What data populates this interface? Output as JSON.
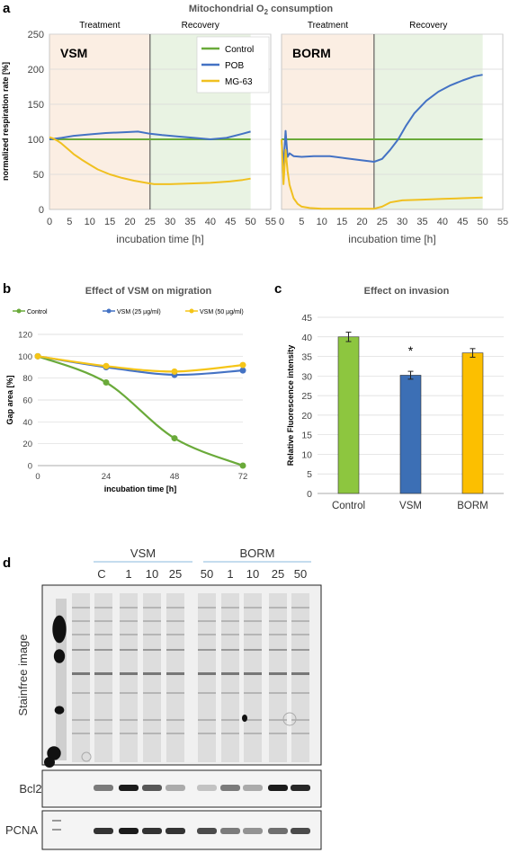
{
  "panels": {
    "a": "a",
    "b": "b",
    "c": "c",
    "d": "d"
  },
  "colors": {
    "control": "#6aaa3a",
    "pob": "#4472c4",
    "mg63": "#f0c020",
    "vsm25": "#4472c4",
    "vsm50": "#f5c518",
    "bar_control": "#8dc63f",
    "bar_vsm": "#3c6fb5",
    "bar_borm": "#fcbf00",
    "treatment_bg": "#fbeee3",
    "recovery_bg": "#e9f3e3"
  },
  "chart_data": [
    {
      "id": "a",
      "type": "line",
      "title": "Mitochondrial O",
      "title_sub": "2",
      "title_rest": " consumption",
      "ylabel": "normalized respiration rate [%]",
      "xlabel": "incubation time [h]",
      "ylim": [
        0,
        250
      ],
      "yticks": [
        "0",
        "50",
        "100",
        "150",
        "200",
        "250"
      ],
      "xlim": [
        0,
        55
      ],
      "xticks": [
        "0",
        "5",
        "10",
        "15",
        "20",
        "25",
        "30",
        "35",
        "40",
        "45",
        "50",
        "55"
      ],
      "phases": [
        "Treatment",
        "Recovery"
      ],
      "legend": [
        "Control",
        "POB",
        "MG-63"
      ],
      "panels": [
        {
          "name": "VSM",
          "switch_x": 25,
          "series": [
            {
              "key": "control",
              "name": "Control",
              "x": [
                0,
                50
              ],
              "y": [
                100,
                100
              ]
            },
            {
              "key": "pob",
              "name": "POB",
              "x": [
                0,
                3,
                6,
                10,
                14,
                18,
                22,
                25,
                28,
                32,
                36,
                40,
                44,
                48,
                50
              ],
              "y": [
                100,
                102,
                105,
                107,
                109,
                110,
                111,
                108,
                106,
                104,
                102,
                100,
                102,
                108,
                111
              ]
            },
            {
              "key": "mg63",
              "name": "MG-63",
              "x": [
                0,
                1,
                2,
                3,
                4,
                5,
                6,
                7,
                8,
                10,
                12,
                15,
                18,
                21,
                24,
                26,
                30,
                35,
                40,
                45,
                48,
                50
              ],
              "y": [
                103,
                101,
                98,
                94,
                89,
                84,
                79,
                75,
                71,
                64,
                57,
                50,
                45,
                41,
                38,
                36,
                36,
                37,
                38,
                40,
                42,
                44
              ]
            }
          ]
        },
        {
          "name": "BORM",
          "switch_x": 23,
          "series": [
            {
              "key": "control",
              "name": "Control",
              "x": [
                0,
                50
              ],
              "y": [
                100,
                100
              ]
            },
            {
              "key": "pob",
              "name": "POB",
              "x": [
                0,
                0.5,
                1,
                1.5,
                2,
                3,
                5,
                8,
                12,
                16,
                20,
                23,
                25,
                27,
                29,
                31,
                33,
                36,
                39,
                42,
                45,
                48,
                50
              ],
              "y": [
                100,
                60,
                112,
                75,
                80,
                76,
                75,
                76,
                76,
                73,
                70,
                68,
                72,
                85,
                100,
                120,
                137,
                155,
                168,
                177,
                184,
                190,
                192
              ]
            },
            {
              "key": "mg63",
              "name": "MG-63",
              "x": [
                0,
                0.5,
                1,
                1.5,
                2,
                3,
                4,
                5,
                7,
                10,
                15,
                20,
                23,
                25,
                27,
                30,
                35,
                40,
                45,
                50
              ],
              "y": [
                100,
                36,
                85,
                55,
                35,
                16,
                8,
                4,
                2,
                1,
                1,
                1,
                1,
                4,
                10,
                13,
                14,
                15,
                16,
                17
              ]
            }
          ]
        }
      ]
    },
    {
      "id": "b",
      "type": "line",
      "title": "Effect of VSM on migration",
      "ylabel": "Gap area [%]",
      "xlabel": "incubation time [h]",
      "ylim": [
        0,
        120
      ],
      "yticks": [
        "0",
        "20",
        "40",
        "60",
        "80",
        "100",
        "120"
      ],
      "categories": [
        "0",
        "24",
        "48",
        "72"
      ],
      "x": [
        0,
        24,
        48,
        72
      ],
      "series": [
        {
          "key": "control",
          "name": "Control",
          "values": [
            100,
            76,
            25,
            0
          ]
        },
        {
          "key": "vsm25",
          "name": "VSM (25 µg/ml)",
          "values": [
            100,
            90,
            83,
            87
          ]
        },
        {
          "key": "vsm50",
          "name": "VSM (50 µg/ml)",
          "values": [
            100,
            91,
            86,
            92
          ]
        }
      ]
    },
    {
      "id": "c",
      "type": "bar",
      "title": "Effect on invasion",
      "ylabel": "Relative Fluorescence intensity",
      "ylim": [
        0,
        45
      ],
      "yticks": [
        "0",
        "5",
        "10",
        "15",
        "20",
        "25",
        "30",
        "35",
        "40",
        "45"
      ],
      "categories": [
        "Control",
        "VSM",
        "BORM"
      ],
      "values": [
        40,
        30.2,
        35.9
      ],
      "errors": [
        1.2,
        1.0,
        1.1
      ],
      "annotation": "*"
    }
  ],
  "blot": {
    "group_vsm": "VSM",
    "group_borm": "BORM",
    "lanes": [
      "C",
      "1",
      "10",
      "25",
      "50",
      "1",
      "10",
      "25",
      "50"
    ],
    "rows": [
      "Stainfree image",
      "Bcl2",
      "PCNA"
    ],
    "bcl2_intensity": [
      0.55,
      0.95,
      0.7,
      0.35,
      0.25,
      0.55,
      0.35,
      0.95,
      0.9
    ],
    "pcna_intensity": [
      0.85,
      0.95,
      0.85,
      0.85,
      0.75,
      0.55,
      0.45,
      0.6,
      0.75
    ]
  }
}
